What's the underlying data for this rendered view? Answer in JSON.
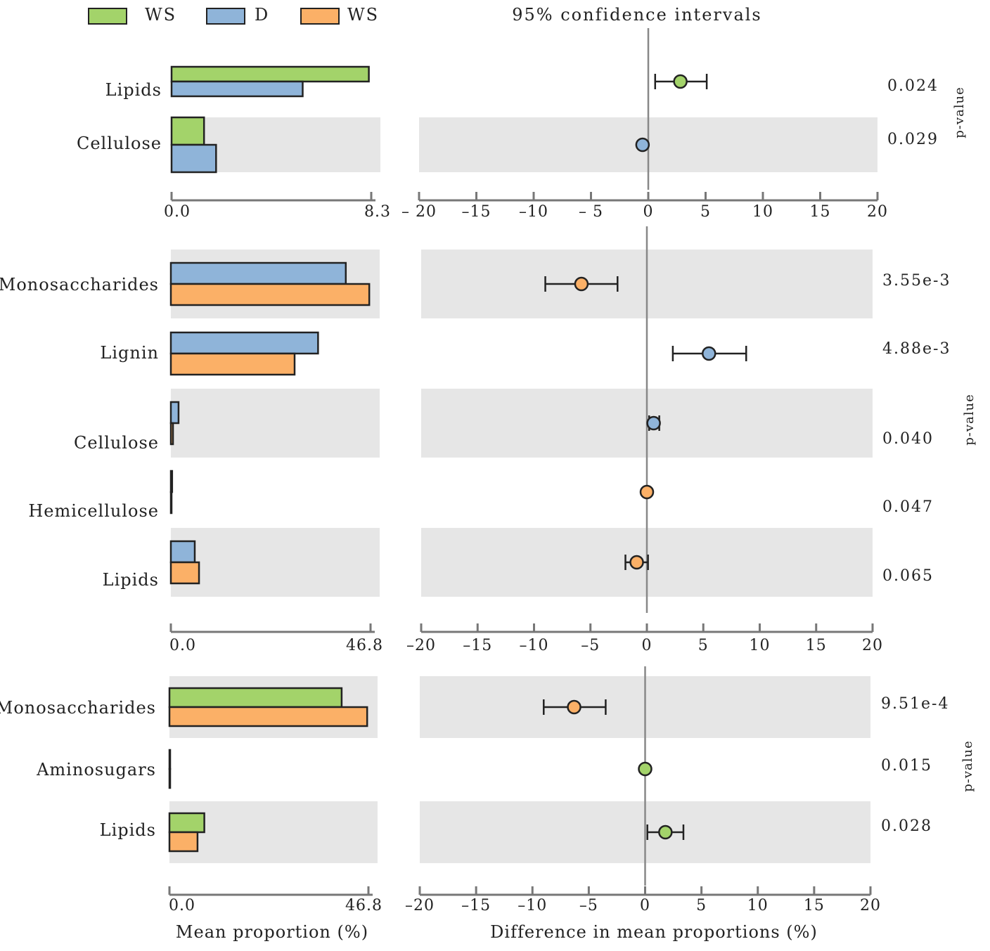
{
  "legend": [
    {
      "label": "WS",
      "color": "#a3d36a"
    },
    {
      "label": "D",
      "color": "#8fb4d9"
    },
    {
      "label": "WS",
      "color": "#fbb067"
    }
  ],
  "header": "95% confidence intervals",
  "xlabel_left": "Mean proportion (%)",
  "xlabel_right": "Difference in mean proportions (%)",
  "colors": {
    "green": "#a3d36a",
    "blue": "#8fb4d9",
    "orange": "#fbb067",
    "shade": "#e6e6e6"
  },
  "chart_data": [
    {
      "type": "bar",
      "panel": 1,
      "categories": [
        "Lipids",
        "Cellulose"
      ],
      "series": [
        {
          "name": "WS",
          "color": "#a3d36a",
          "values": [
            8.2,
            1.35
          ]
        },
        {
          "name": "D",
          "color": "#8fb4d9",
          "values": [
            5.45,
            1.85
          ]
        }
      ],
      "xlim": [
        0,
        8.3
      ],
      "tick_labels": [
        "0.0",
        "8.3"
      ],
      "ci": {
        "xlim": [
          -20,
          20
        ],
        "ticks": [
          "– 20",
          "–15",
          "–10",
          "– 5",
          "0",
          "5",
          "10",
          "15",
          "20"
        ],
        "points": [
          {
            "diff": 2.8,
            "lo": 0.6,
            "hi": 5.1,
            "color": "#a3d36a"
          },
          {
            "diff": -0.5,
            "lo": -0.5,
            "hi": -0.5,
            "color": "#8fb4d9"
          }
        ]
      },
      "p_values": [
        "0.024",
        "0.029"
      ],
      "p_label": "p-value"
    },
    {
      "type": "bar",
      "panel": 2,
      "categories": [
        "Monosaccharides",
        "Lignin",
        "Cellulose",
        "Hemicellulose",
        "Lipids"
      ],
      "series": [
        {
          "name": "D",
          "color": "#8fb4d9",
          "values": [
            41.0,
            34.5,
            1.8,
            0.3,
            5.6
          ]
        },
        {
          "name": "WS",
          "color": "#fbb067",
          "values": [
            46.5,
            29.0,
            0.5,
            0.1,
            6.6
          ]
        }
      ],
      "xlim": [
        0,
        46.8
      ],
      "tick_labels": [
        "0.0",
        "46.8"
      ],
      "ci": {
        "xlim": [
          -20,
          20
        ],
        "ticks": [
          "–20",
          "–15",
          "–10",
          "–5",
          "0",
          "5",
          "10",
          "15",
          "20"
        ],
        "points": [
          {
            "diff": -5.8,
            "lo": -9.0,
            "hi": -2.6,
            "color": "#fbb067"
          },
          {
            "diff": 5.5,
            "lo": 2.3,
            "hi": 8.8,
            "color": "#8fb4d9"
          },
          {
            "diff": 0.6,
            "lo": 0.2,
            "hi": 1.1,
            "color": "#8fb4d9"
          },
          {
            "diff": 0.0,
            "lo": 0.0,
            "hi": 0.0,
            "color": "#fbb067"
          },
          {
            "diff": -0.9,
            "lo": -1.9,
            "hi": 0.1,
            "color": "#fbb067"
          }
        ]
      },
      "p_values": [
        "3.55e-3",
        "4.88e-3",
        "0.040",
        "0.047",
        "0.065"
      ],
      "p_label": "p-value"
    },
    {
      "type": "bar",
      "panel": 3,
      "categories": [
        "Monosaccharides",
        "Aminosugars",
        "Lipids"
      ],
      "series": [
        {
          "name": "WS",
          "color": "#a3d36a",
          "values": [
            40.5,
            0.1,
            8.2
          ]
        },
        {
          "name": "WS",
          "color": "#fbb067",
          "values": [
            46.5,
            0.1,
            6.6
          ]
        }
      ],
      "xlim": [
        0,
        46.8
      ],
      "tick_labels": [
        "0.0",
        "46.8"
      ],
      "ci": {
        "xlim": [
          -20,
          20
        ],
        "ticks": [
          "–20",
          "–15",
          "–10",
          "–5",
          "0",
          "5",
          "10",
          "15",
          "20"
        ],
        "points": [
          {
            "diff": -6.3,
            "lo": -9.0,
            "hi": -3.5,
            "color": "#fbb067"
          },
          {
            "diff": 0.0,
            "lo": 0.0,
            "hi": 0.0,
            "color": "#a3d36a"
          },
          {
            "diff": 1.8,
            "lo": 0.2,
            "hi": 3.4,
            "color": "#a3d36a"
          }
        ]
      },
      "p_values": [
        "9.51e-4",
        "0.015",
        "0.028"
      ],
      "p_label": "p-value"
    }
  ]
}
